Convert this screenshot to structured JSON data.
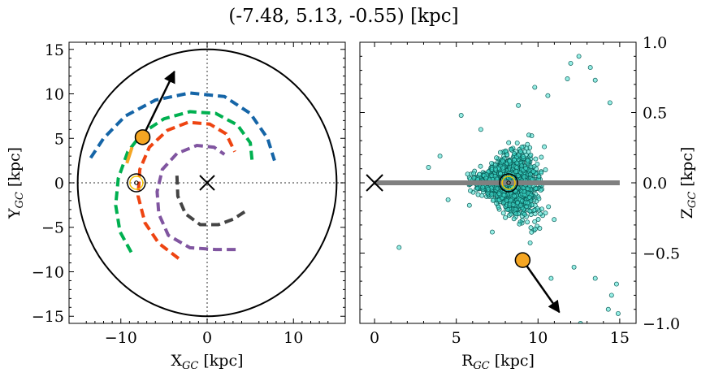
{
  "figure": {
    "title": "(-7.48, 5.13, -0.55) [kpc]"
  },
  "chart_data": [
    {
      "type": "line",
      "panel": "left",
      "xlabel": "X_GC [kpc]",
      "ylabel": "Y_GC [kpc]",
      "xlim": [
        -16,
        16
      ],
      "ylim": [
        -15.8,
        15.8
      ],
      "xticks": [
        "−10",
        "0",
        "10"
      ],
      "yticks": [
        "−15",
        "−10",
        "−5",
        "0",
        "5",
        "10",
        "15"
      ],
      "circle_radius": 15,
      "spiral_arms": [
        {
          "color": "#1565a7",
          "points": [
            [
              -13.5,
              2.8
            ],
            [
              -12,
              5
            ],
            [
              -9.5,
              7.5
            ],
            [
              -6,
              9.3
            ],
            [
              -2,
              10.1
            ],
            [
              2,
              9.7
            ],
            [
              5,
              7.8
            ],
            [
              7,
              5
            ],
            [
              7.8,
              2.5
            ]
          ]
        },
        {
          "color": "#00b050",
          "points": [
            [
              -8.8,
              -7.8
            ],
            [
              -10.1,
              -5.5
            ],
            [
              -10.6,
              -2.5
            ],
            [
              -10.3,
              0.5
            ],
            [
              -9.2,
              3.5
            ],
            [
              -7.5,
              5.6
            ],
            [
              -5,
              7.2
            ],
            [
              -2,
              8
            ],
            [
              1,
              7.8
            ],
            [
              3.5,
              6.5
            ],
            [
              5,
              4.5
            ],
            [
              5.2,
              2.5
            ]
          ]
        },
        {
          "color": "#ee4411",
          "points": [
            [
              -3.3,
              -8.5
            ],
            [
              -5.6,
              -6.8
            ],
            [
              -7.2,
              -4.5
            ],
            [
              -8,
              -1.5
            ],
            [
              -7.8,
              1.5
            ],
            [
              -6.7,
              4
            ],
            [
              -4.6,
              5.9
            ],
            [
              -2.2,
              6.8
            ],
            [
              0.3,
              6.6
            ],
            [
              2.2,
              5.5
            ],
            [
              3.2,
              3.5
            ]
          ]
        },
        {
          "color": "#8055a0",
          "points": [
            [
              3.3,
              -7.5
            ],
            [
              1,
              -7.5
            ],
            [
              -2,
              -7.3
            ],
            [
              -4.5,
              -5.9
            ],
            [
              -5.6,
              -3.5
            ],
            [
              -5.8,
              -1
            ],
            [
              -5.2,
              1.5
            ],
            [
              -3.5,
              3.3
            ],
            [
              -1.2,
              4.2
            ],
            [
              0.8,
              4
            ],
            [
              2,
              3.2
            ]
          ]
        },
        {
          "color": "#444444",
          "points": [
            [
              -3.5,
              0.8
            ],
            [
              -3.4,
              -1.5
            ],
            [
              -2.5,
              -3.5
            ],
            [
              -0.8,
              -4.7
            ],
            [
              1.3,
              -4.7
            ],
            [
              3,
              -4.1
            ],
            [
              4.6,
              -3.1
            ]
          ]
        }
      ],
      "orange_arm_segment": {
        "color": "#f5a623",
        "points": [
          [
            -9.3,
            2.2
          ],
          [
            -8.7,
            4
          ]
        ]
      },
      "sun": {
        "x": -8.2,
        "y": 0
      },
      "galactic_center": {
        "x": 0,
        "y": 0
      },
      "object": {
        "x": -7.48,
        "y": 5.13,
        "color": "#f5a623"
      },
      "velocity_arrow_end": {
        "x": -3.8,
        "y": 12.5
      }
    },
    {
      "type": "scatter",
      "panel": "right",
      "xlabel": "R_GC [kpc]",
      "ylabel": "Z_GC [kpc]",
      "xlim": [
        -0.9,
        16
      ],
      "ylim": [
        -1.0,
        1.0
      ],
      "xticks": [
        "0",
        "5",
        "10",
        "15"
      ],
      "yticks": [
        "1.0",
        "0.5",
        "0.0",
        "−0.5",
        "−1.0"
      ],
      "point_color": "#40e0d0",
      "disk_line": {
        "x": [
          0,
          15
        ],
        "y": 0,
        "color": "#808080"
      },
      "sun": {
        "x": 8.2,
        "y": 0
      },
      "galactic_center": {
        "x": 0,
        "y": 0
      },
      "object": {
        "x": 9.06,
        "y": -0.55,
        "color": "#f5a623"
      },
      "velocity_arrow_end": {
        "x": 11.3,
        "y": -0.92
      },
      "scatter_outliers": [
        [
          1.5,
          -0.46
        ],
        [
          3.3,
          0.11
        ],
        [
          4.0,
          0.19
        ],
        [
          5.3,
          0.48
        ],
        [
          6.5,
          0.38
        ],
        [
          12.5,
          0.9
        ],
        [
          13.2,
          0.82
        ],
        [
          11.8,
          0.74
        ],
        [
          12.0,
          0.85
        ],
        [
          13.5,
          0.73
        ],
        [
          14.4,
          0.57
        ],
        [
          14.8,
          -0.72
        ],
        [
          14.5,
          -0.8
        ],
        [
          14.9,
          -0.93
        ],
        [
          14.3,
          -0.9
        ],
        [
          13.5,
          -0.68
        ],
        [
          12.6,
          -1.0
        ],
        [
          10.8,
          -0.68
        ],
        [
          12.2,
          -0.6
        ],
        [
          7.2,
          -0.35
        ],
        [
          5.8,
          -0.16
        ],
        [
          4.5,
          -0.12
        ],
        [
          9.8,
          0.68
        ],
        [
          10.6,
          0.62
        ],
        [
          8.8,
          0.55
        ]
      ]
    }
  ]
}
